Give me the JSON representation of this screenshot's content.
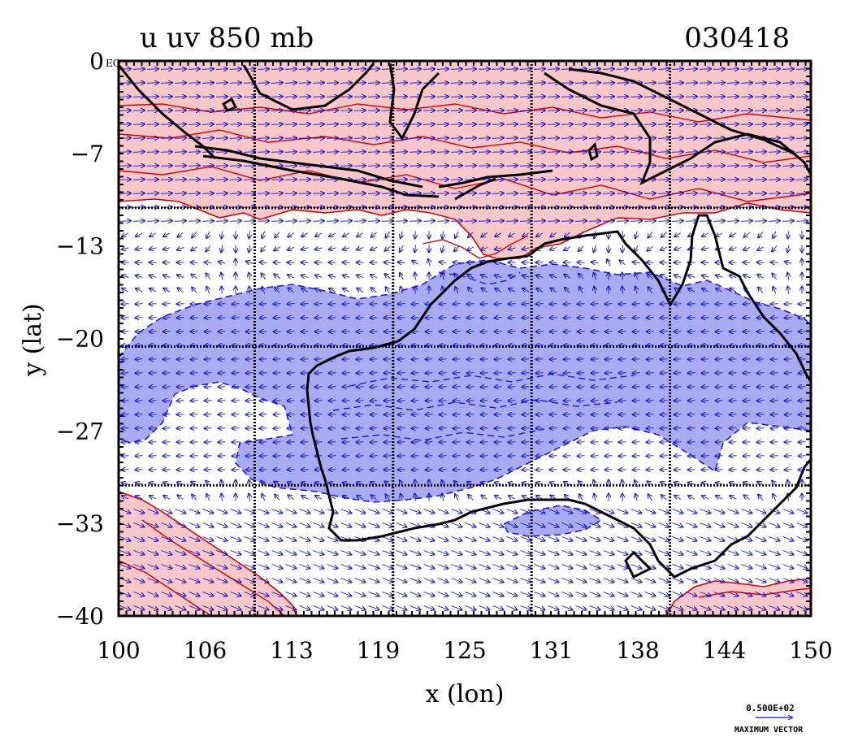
{
  "header": {
    "left_title": "u uv 850 mb",
    "right_title": "030418",
    "origin_tag": "EQ"
  },
  "axes": {
    "xlabel": "x (lon)",
    "ylabel": "y (lat)",
    "xlim": [
      100,
      150
    ],
    "ylim": [
      -40,
      0
    ],
    "x_ticks": [
      "100",
      "106",
      "113",
      "119",
      "125",
      "131",
      "138",
      "144",
      "150"
    ],
    "y_ticks": [
      "0",
      "-7",
      "-13",
      "-20",
      "-27",
      "-33",
      "-40"
    ],
    "grid_lon": [
      110,
      120,
      130,
      140
    ],
    "grid_lat": [
      -10,
      -20,
      -30
    ]
  },
  "legend": {
    "vector_value": "0.500E+02",
    "vector_caption": "MAXIMUM VECTOR"
  },
  "colors": {
    "positive_fill": "#f8c8c8",
    "positive_line": "#e00000",
    "negative_fill": "#aaaaf0",
    "negative_line": "#1a1ae0",
    "vector": "#1010e0",
    "coast": "#000000",
    "frame": "#000000"
  }
}
